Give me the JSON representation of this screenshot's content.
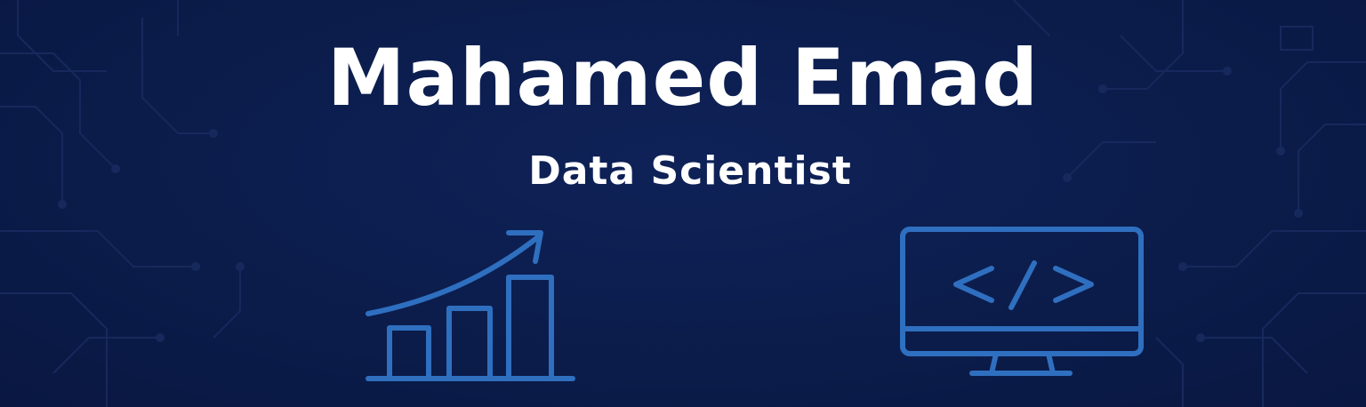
{
  "banner": {
    "name": "Mahamed Emad",
    "role": "Data Scientist"
  },
  "icons": {
    "left": "bar-chart-growth-icon",
    "right": "monitor-code-icon"
  },
  "colors": {
    "background": "#0b1c4a",
    "text": "#ffffff",
    "icon_stroke": "#2f6fc0",
    "circuit_lines": "#17295c"
  }
}
